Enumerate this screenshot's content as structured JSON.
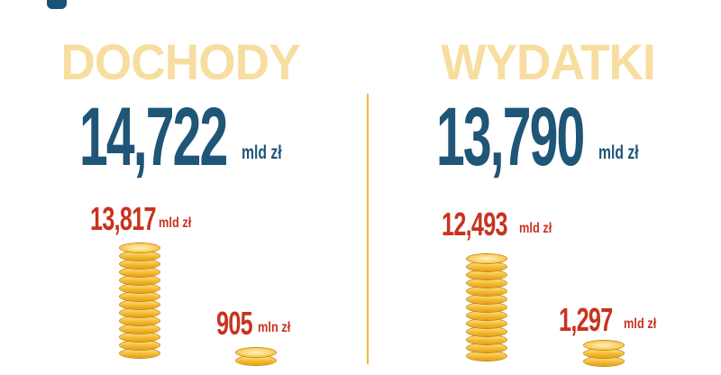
{
  "panels": {
    "income": {
      "title": "DOCHODY",
      "total": {
        "value": "14,722",
        "unit": "mld zł"
      },
      "items": [
        {
          "value": "13,817",
          "unit": "mld zł"
        },
        {
          "value": "905",
          "unit": "mln zł"
        }
      ]
    },
    "expenses": {
      "title": "WYDATKI",
      "total": {
        "value": "13,790",
        "unit": "mld zł"
      },
      "items": [
        {
          "value": "12,493",
          "unit": "mld zł"
        },
        {
          "value": "1,297",
          "unit": "mld zł"
        }
      ]
    }
  },
  "colors": {
    "heading": "#f7dea0",
    "total": "#1f5577",
    "sub": "#c8331f",
    "coin": "#f7c33d",
    "divider": "#f1b93d"
  },
  "icons": {
    "corner": "logo-icon",
    "coins": "coin-stack-icon"
  }
}
